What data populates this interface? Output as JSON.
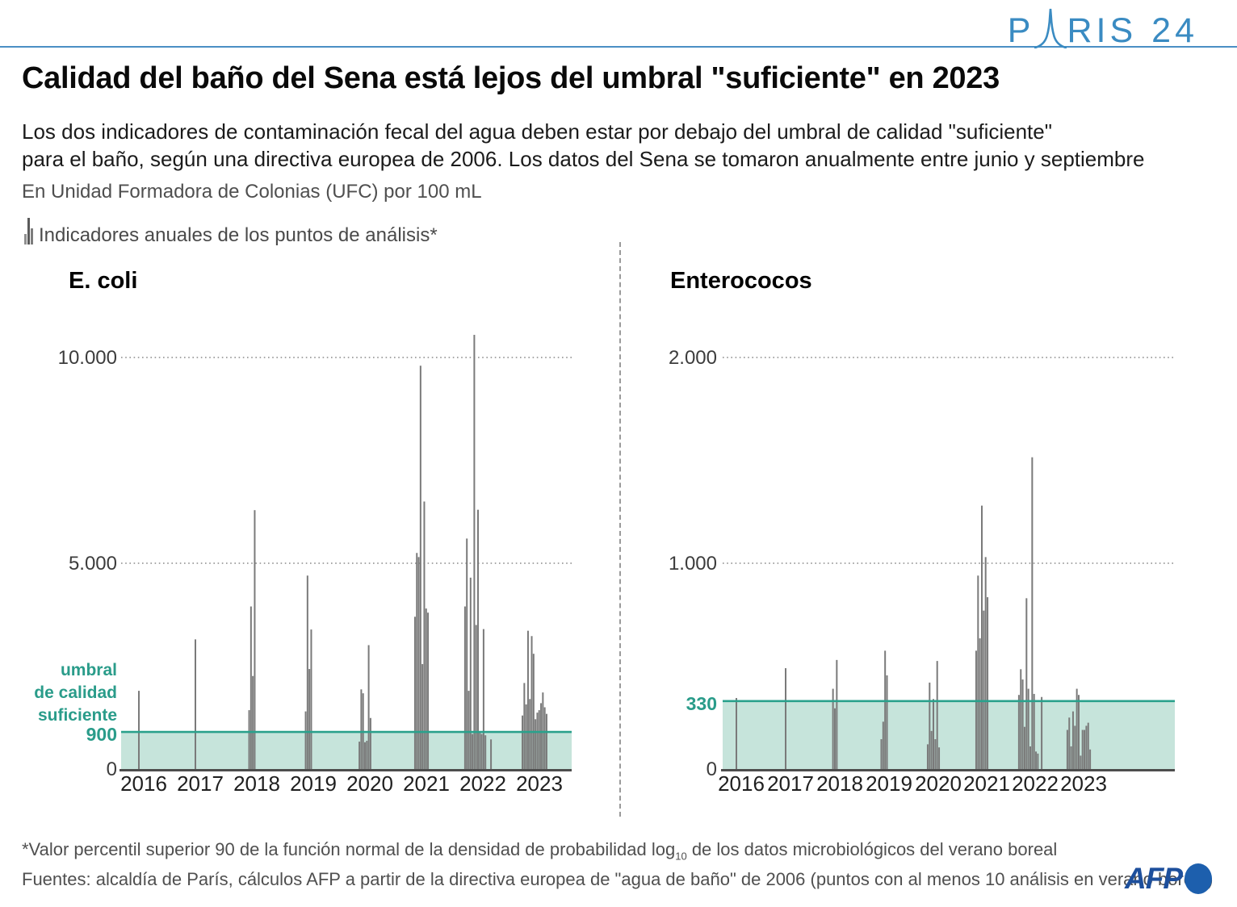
{
  "page": {
    "logo": {
      "part1": "P",
      "part2": "RIS",
      "part3": "24"
    },
    "title": "Calidad del baño del Sena está lejos del umbral \"suficiente\" en 2023",
    "subtitle_line1": "Los dos indicadores de contaminación fecal del agua deben estar por debajo del umbral de calidad \"suficiente\"",
    "subtitle_line2": "para el baño, según una directiva europea de 2006. Los datos del Sena se tomaron anualmente entre junio y septiembre",
    "unit_note": "En Unidad Formadora de Colonias (UFC) por 100 mL",
    "legend_label": "Indicadores anuales de los puntos de análisis*",
    "footnote_pre": "*Valor percentil superior 90 de la función normal de la densidad de probabilidad log",
    "footnote_sub": "10",
    "footnote_post": " de los datos microbiológicos del verano boreal",
    "sources": "Fuentes: alcaldía de París, cálculos AFP a partir de la directiva europea de \"agua de baño\" de 2006 (puntos con al menos 10 análisis en verano boreal)",
    "afp_label": "AFP"
  },
  "colors": {
    "accent_blue": "#3a8bc2",
    "teal": "#2aa18c",
    "teal_text": "#2a9c8a",
    "teal_band": "#c6e4db",
    "bar_gray": "#7a7a7a",
    "afp_blue": "#1d4f9c"
  },
  "chart_data": [
    {
      "type": "bar",
      "title": "E. coli",
      "unit": "UFC por 100 mL",
      "legend": "Indicadores anuales de los puntos de análisis*",
      "grid": "dotted horizontal",
      "ylim": [
        0,
        11000
      ],
      "zero_label": "0",
      "gridlines": [
        {
          "value": 10000,
          "label": "10.000"
        },
        {
          "value": 5000,
          "label": "5.000"
        }
      ],
      "threshold": {
        "value": 900,
        "label": "900",
        "note_lines": [
          "umbral",
          "de calidad",
          "suficiente"
        ]
      },
      "categories": [
        "2016",
        "2017",
        "2018",
        "2019",
        "2020",
        "2021",
        "2022",
        "2023"
      ],
      "series_by_year": [
        [
          1900
        ],
        [
          3150
        ],
        [
          1430,
          3950,
          2260,
          6290
        ],
        [
          1400,
          4700,
          2430,
          3390
        ],
        [
          665,
          1935,
          1840,
          650,
          685,
          3010,
          1240
        ],
        [
          3700,
          5250,
          5150,
          9800,
          2550,
          6500,
          3900,
          3800
        ],
        [
          3950,
          5600,
          1900,
          4650,
          850,
          10550,
          3500,
          6300,
          900,
          850,
          3400,
          820,
          null,
          null,
          720
        ],
        [
          1300,
          2090,
          1570,
          3360,
          1700,
          3230,
          2800,
          1210,
          1370,
          1430,
          1600,
          1860,
          1500,
          1340
        ]
      ]
    },
    {
      "type": "bar",
      "title": "Enterococos",
      "unit": "UFC por 100 mL",
      "legend": "Indicadores anuales de los puntos de análisis*",
      "grid": "dotted horizontal",
      "ylim": [
        0,
        2200
      ],
      "zero_label": "0",
      "gridlines": [
        {
          "value": 2000,
          "label": "2.000"
        },
        {
          "value": 1000,
          "label": "1.000"
        }
      ],
      "threshold": {
        "value": 330,
        "label": "330",
        "note_lines": []
      },
      "categories": [
        "2016",
        "2017",
        "2018",
        "2019",
        "2020",
        "2021",
        "2022",
        "2023"
      ],
      "series_by_year": [
        [
          345
        ],
        [
          490
        ],
        [
          390,
          295,
          530
        ],
        [
          145,
          230,
          575,
          455
        ],
        [
          120,
          420,
          185,
          340,
          145,
          525,
          105
        ],
        [
          575,
          940,
          635,
          1280,
          770,
          1030,
          835
        ],
        [
          360,
          485,
          435,
          205,
          830,
          390,
          110,
          1515,
          365,
          85,
          75,
          null,
          350
        ],
        [
          190,
          250,
          110,
          280,
          210,
          390,
          360,
          65,
          190,
          190,
          210,
          225,
          95
        ]
      ]
    }
  ]
}
